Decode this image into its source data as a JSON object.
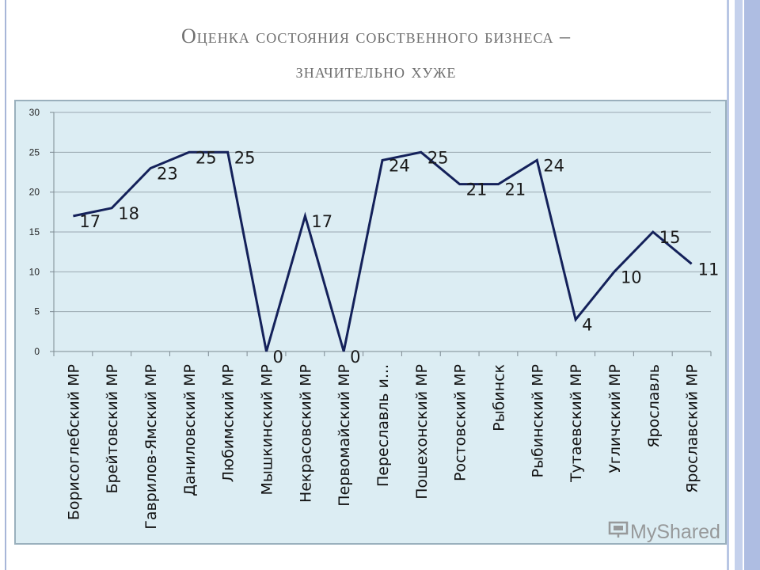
{
  "slide": {
    "title_line1": "Оценка состояния собственного бизнеса –",
    "title_line2": "значительно хуже"
  },
  "watermark": {
    "text": "MyShared"
  },
  "colors": {
    "line": "#14215a",
    "plot_bg": "#dcedf3",
    "grid": "#9aa8b0",
    "title": "#6f6f6f"
  },
  "chart_data": {
    "type": "line",
    "title": "",
    "xlabel": "",
    "ylabel": "",
    "ylim": [
      0,
      30
    ],
    "yticks": [
      0,
      5,
      10,
      15,
      20,
      25,
      30
    ],
    "grid": true,
    "legend": "none",
    "categories": [
      "Борисоглебский МР",
      "Брейтовский МР",
      "Гаврилов-Ямский МР",
      "Даниловский МР",
      "Любимский МР",
      "Мышкинский МР",
      "Некрасовский МР",
      "Первомайский МР",
      "Переславль и...",
      "Пошехонский МР",
      "Ростовский МР",
      "Рыбинск",
      "Рыбинский МР",
      "Тутаевский МР",
      "Угличский МР",
      "Ярославль",
      "Ярославский МР"
    ],
    "values": [
      17,
      18,
      23,
      25,
      25,
      0,
      17,
      0,
      24,
      25,
      21,
      21,
      24,
      4,
      10,
      15,
      11
    ]
  }
}
